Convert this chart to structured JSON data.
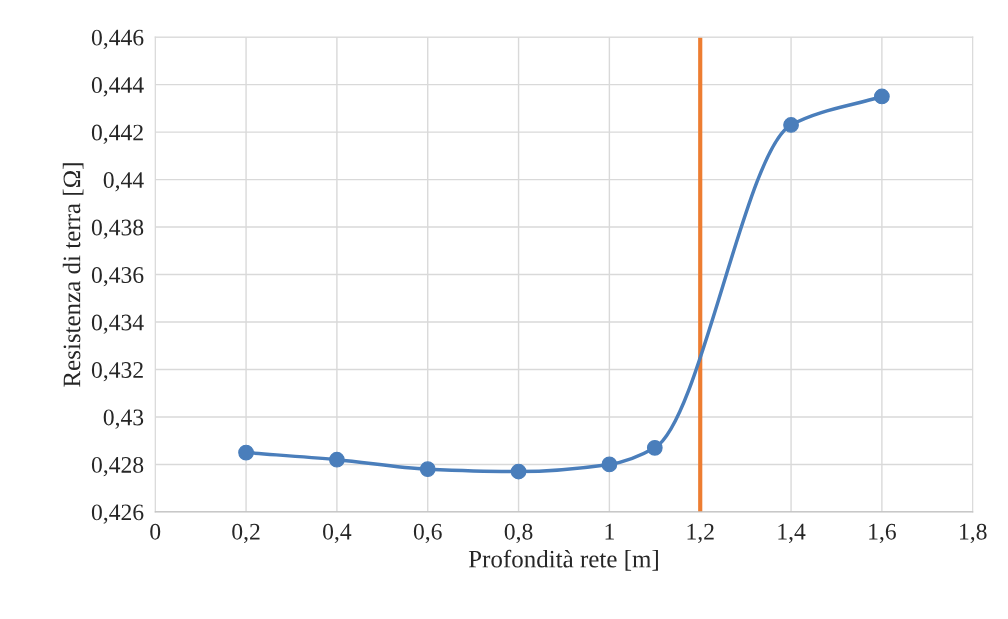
{
  "chart_data": {
    "type": "line",
    "xlabel": "Profondità rete [m]",
    "ylabel": "Resistenza di terra [Ω]",
    "x": [
      0.2,
      0.4,
      0.6,
      0.8,
      1.0,
      1.1,
      1.4,
      1.6
    ],
    "series": [
      {
        "color": "#4a7ebb",
        "values": [
          0.4285,
          0.4282,
          0.4278,
          0.4277,
          0.428,
          0.4287,
          0.4423,
          0.4435
        ]
      }
    ],
    "xlim": [
      0,
      1.8
    ],
    "xticks": [
      0,
      {
        "value": 0.2,
        "label": "0,2"
      },
      {
        "value": 0.4,
        "label": "0,4"
      },
      {
        "value": 0.6,
        "label": "0,6"
      },
      {
        "value": 0.8,
        "label": "0,8"
      },
      1,
      {
        "value": 1.2,
        "label": "1,2"
      },
      {
        "value": 1.4,
        "label": "1,4"
      },
      {
        "value": 1.6,
        "label": "1,6"
      },
      {
        "value": 1.8,
        "label": "1,8"
      }
    ],
    "ylim": [
      0.426,
      0.446
    ],
    "yticks": [
      {
        "value": 0.426,
        "label": "0,426"
      },
      {
        "value": 0.428,
        "label": "0,428"
      },
      {
        "value": 0.43,
        "label": "0,43"
      },
      {
        "value": 0.432,
        "label": "0,432"
      },
      {
        "value": 0.434,
        "label": "0,434"
      },
      {
        "value": 0.436,
        "label": "0,436"
      },
      {
        "value": 0.438,
        "label": "0,438"
      },
      {
        "value": 0.44,
        "label": "0,44"
      },
      {
        "value": 0.442,
        "label": "0,442"
      },
      {
        "value": 0.444,
        "label": "0,444"
      },
      {
        "value": 0.446,
        "label": "0,446"
      }
    ],
    "ref_lines": [
      {
        "axis": "x",
        "value": 1.2,
        "color": "#ed7d31"
      }
    ],
    "grid": true,
    "marker": "circle",
    "line_style": "solid"
  }
}
